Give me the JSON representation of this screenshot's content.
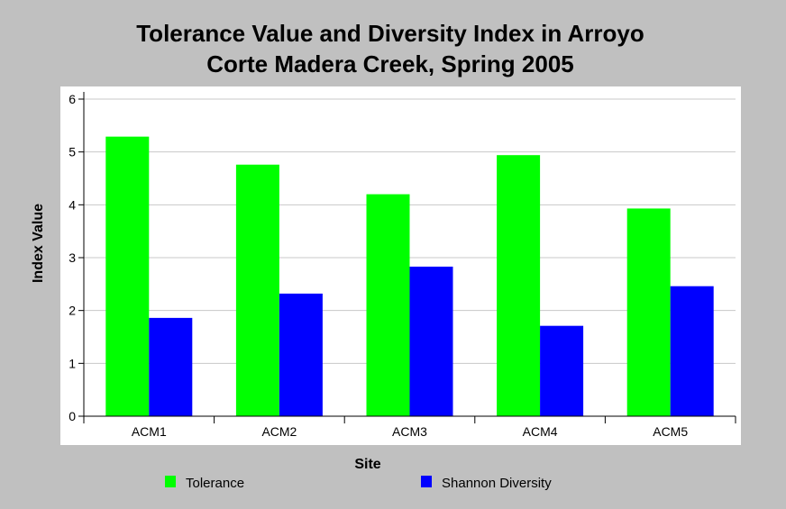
{
  "chart_data": {
    "type": "bar",
    "title": "Tolerance Value and Diversity Index in Arroyo Corte Madera Creek, Spring 2005",
    "title_lines": [
      "Tolerance Value and Diversity Index in Arroyo",
      "Corte Madera Creek, Spring 2005"
    ],
    "xlabel": "Site",
    "ylabel": "Index Value",
    "categories": [
      "ACM1",
      "ACM2",
      "ACM3",
      "ACM4",
      "ACM5"
    ],
    "ylim": [
      0,
      6
    ],
    "yticks": [
      "0",
      "1",
      "2",
      "3",
      "4",
      "5",
      "6"
    ],
    "grid": true,
    "legend_position": "bottom",
    "series": [
      {
        "name": "Tolerance",
        "color": "#00ff00",
        "values": [
          5.29,
          4.76,
          4.2,
          4.94,
          3.93
        ]
      },
      {
        "name": "Shannon Diversity",
        "color": "#0000ff",
        "values": [
          1.86,
          2.32,
          2.83,
          1.71,
          2.46
        ]
      }
    ]
  }
}
